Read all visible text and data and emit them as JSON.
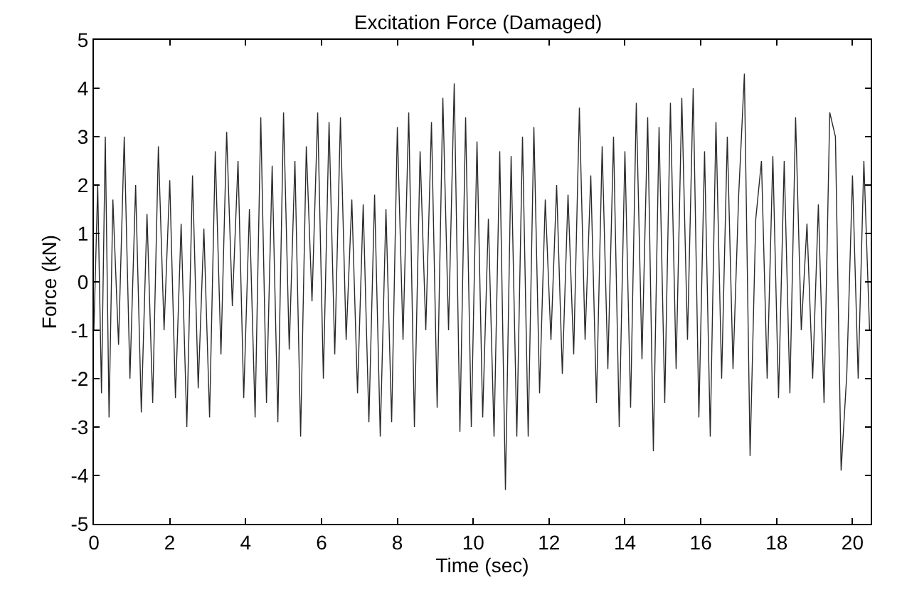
{
  "chart_data": {
    "type": "line",
    "title": "Excitation Force (Damaged)",
    "xlabel": "Time (sec)",
    "ylabel": "Force (kN)",
    "xlim": [
      0,
      20.48
    ],
    "xticks": [
      0,
      2,
      4,
      6,
      8,
      10,
      12,
      14,
      16,
      18,
      20
    ],
    "ylim": [
      -5,
      5
    ],
    "yticks": [
      -5,
      -4,
      -3,
      -2,
      -1,
      0,
      1,
      2,
      3,
      4,
      5
    ],
    "grid": false,
    "marker": "none",
    "line_style": "solid",
    "series": [
      {
        "color": "#2a2a2a",
        "x": [
          0,
          0.1,
          0.2,
          0.3,
          0.4,
          0.5,
          0.65,
          0.8,
          0.95,
          1.1,
          1.25,
          1.4,
          1.55,
          1.7,
          1.85,
          2.0,
          2.15,
          2.3,
          2.45,
          2.6,
          2.75,
          2.9,
          3.05,
          3.2,
          3.35,
          3.5,
          3.65,
          3.8,
          3.95,
          4.1,
          4.25,
          4.4,
          4.55,
          4.7,
          4.85,
          5.0,
          5.15,
          5.3,
          5.45,
          5.6,
          5.75,
          5.9,
          6.05,
          6.2,
          6.35,
          6.5,
          6.65,
          6.8,
          6.95,
          7.1,
          7.25,
          7.4,
          7.55,
          7.7,
          7.85,
          8.0,
          8.15,
          8.3,
          8.45,
          8.6,
          8.75,
          8.9,
          9.05,
          9.2,
          9.35,
          9.5,
          9.65,
          9.8,
          9.95,
          10.1,
          10.25,
          10.4,
          10.55,
          10.7,
          10.85,
          11.0,
          11.15,
          11.3,
          11.45,
          11.6,
          11.75,
          11.9,
          12.05,
          12.2,
          12.35,
          12.5,
          12.65,
          12.8,
          12.95,
          13.1,
          13.25,
          13.4,
          13.55,
          13.7,
          13.85,
          14.0,
          14.15,
          14.3,
          14.45,
          14.6,
          14.75,
          14.9,
          15.05,
          15.2,
          15.35,
          15.5,
          15.65,
          15.8,
          15.95,
          16.1,
          16.25,
          16.4,
          16.55,
          16.7,
          16.85,
          17.0,
          17.15,
          17.3,
          17.45,
          17.6,
          17.75,
          17.9,
          18.05,
          18.2,
          18.35,
          18.5,
          18.65,
          18.8,
          18.95,
          19.1,
          19.25,
          19.4,
          19.55,
          19.7,
          19.85,
          20.0,
          20.15,
          20.3,
          20.45
        ],
        "values": [
          -1,
          2.0,
          -2.3,
          3.0,
          -2.8,
          1.7,
          -1.3,
          3.0,
          -2.0,
          2.0,
          -2.7,
          1.4,
          -2.5,
          2.8,
          -1.0,
          2.1,
          -2.4,
          1.2,
          -3.0,
          2.2,
          -2.2,
          1.1,
          -2.8,
          2.7,
          -1.5,
          3.1,
          -0.5,
          2.5,
          -2.4,
          1.5,
          -2.8,
          3.4,
          -2.5,
          2.4,
          -2.9,
          3.5,
          -1.4,
          2.5,
          -3.2,
          2.8,
          -0.4,
          3.5,
          -2.0,
          3.3,
          -1.5,
          3.4,
          -1.2,
          1.7,
          -2.3,
          1.6,
          -2.9,
          1.8,
          -3.2,
          1.5,
          -2.9,
          3.2,
          -1.2,
          3.5,
          -3.0,
          2.7,
          -1.0,
          3.3,
          -2.6,
          3.8,
          -1.0,
          4.1,
          -3.1,
          3.4,
          -3.0,
          2.9,
          -2.8,
          1.3,
          -3.2,
          2.7,
          -4.3,
          2.6,
          -3.2,
          3.0,
          -3.2,
          3.2,
          -2.3,
          1.7,
          -1.2,
          2.0,
          -1.9,
          1.8,
          -1.5,
          3.6,
          -1.2,
          2.2,
          -2.5,
          2.8,
          -1.8,
          3.0,
          -3.0,
          2.7,
          -2.6,
          3.7,
          -1.6,
          3.4,
          -3.5,
          3.2,
          -2.5,
          3.7,
          -1.8,
          3.8,
          -1.2,
          4.0,
          -2.8,
          2.7,
          -3.2,
          3.3,
          -2.0,
          3.0,
          -1.8,
          1.8,
          4.3,
          -3.6,
          1.3,
          2.5,
          -2.0,
          2.6,
          -2.4,
          2.5,
          -2.3,
          3.4,
          -1.0,
          1.2,
          -2.0,
          1.6,
          -2.5,
          3.5,
          3.0,
          -3.9,
          -1.9,
          2.2,
          -2.0,
          2.5,
          -1.0
        ]
      }
    ]
  }
}
